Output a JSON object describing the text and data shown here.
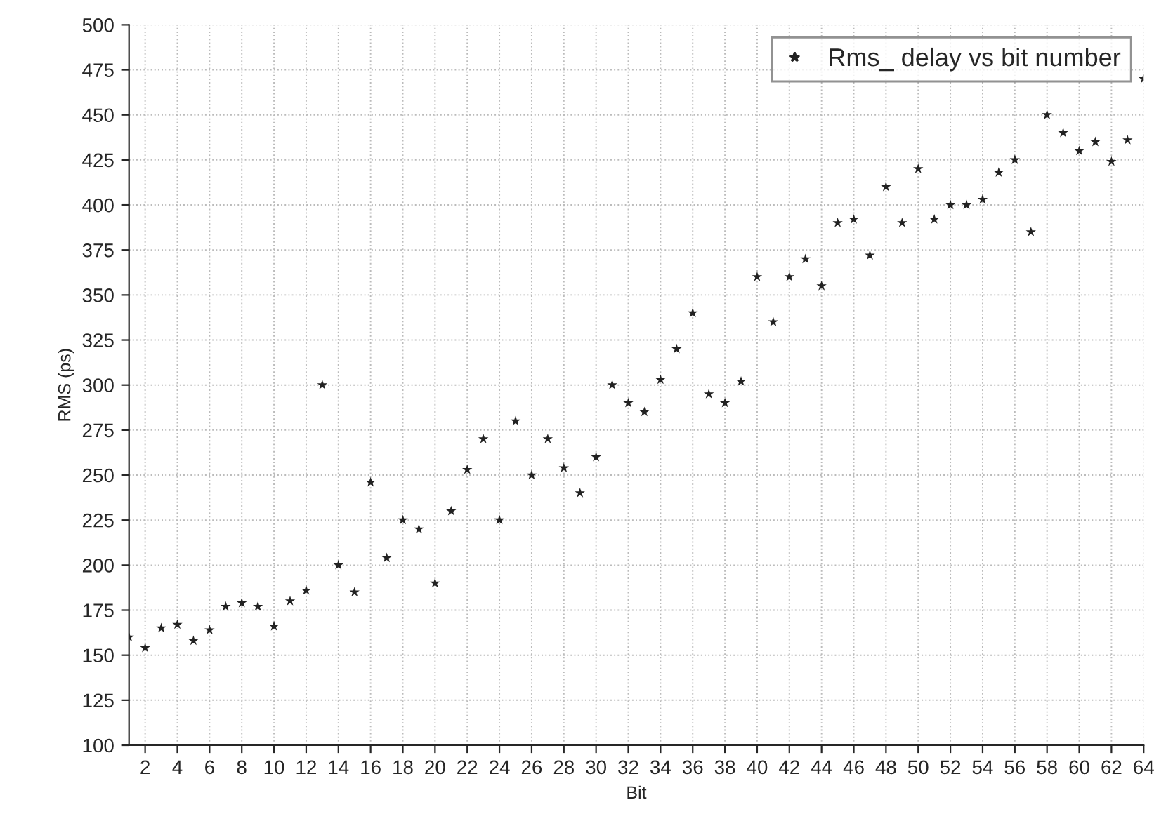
{
  "chart_data": {
    "type": "scatter",
    "xlabel": "Bit",
    "ylabel": "RMS (ps)",
    "x": [
      1,
      2,
      3,
      4,
      5,
      6,
      7,
      8,
      9,
      10,
      11,
      12,
      13,
      14,
      15,
      16,
      17,
      18,
      19,
      20,
      21,
      22,
      23,
      24,
      25,
      26,
      27,
      28,
      29,
      30,
      31,
      32,
      33,
      34,
      35,
      36,
      37,
      38,
      39,
      40,
      41,
      42,
      43,
      44,
      45,
      46,
      47,
      48,
      49,
      50,
      51,
      52,
      53,
      54,
      55,
      56,
      57,
      58,
      59,
      60,
      61,
      62,
      63,
      64
    ],
    "series": [
      {
        "name": "Rms_ delay vs bit number",
        "color": "#222222",
        "values": [
          160,
          154,
          165,
          167,
          158,
          164,
          177,
          179,
          177,
          166,
          180,
          186,
          300,
          200,
          185,
          246,
          204,
          225,
          220,
          190,
          230,
          253,
          270,
          225,
          280,
          250,
          270,
          254,
          240,
          260,
          300,
          290,
          285,
          303,
          320,
          340,
          295,
          290,
          302,
          360,
          335,
          360,
          370,
          355,
          390,
          392,
          372,
          410,
          390,
          420,
          392,
          400,
          400,
          403,
          418,
          425,
          385,
          450,
          440,
          430,
          435,
          424,
          436,
          470
        ]
      }
    ],
    "xlim": [
      1,
      64
    ],
    "xticks": [
      2,
      4,
      6,
      8,
      10,
      12,
      14,
      16,
      18,
      20,
      22,
      24,
      26,
      28,
      30,
      32,
      34,
      36,
      38,
      40,
      42,
      44,
      46,
      48,
      50,
      52,
      54,
      56,
      58,
      60,
      62,
      64
    ],
    "ylim": [
      100,
      500
    ],
    "yticks": [
      100,
      125,
      150,
      175,
      200,
      225,
      250,
      275,
      300,
      325,
      350,
      375,
      400,
      425,
      450,
      475,
      500
    ],
    "grid": true,
    "legend": "top right",
    "marker": "star"
  }
}
